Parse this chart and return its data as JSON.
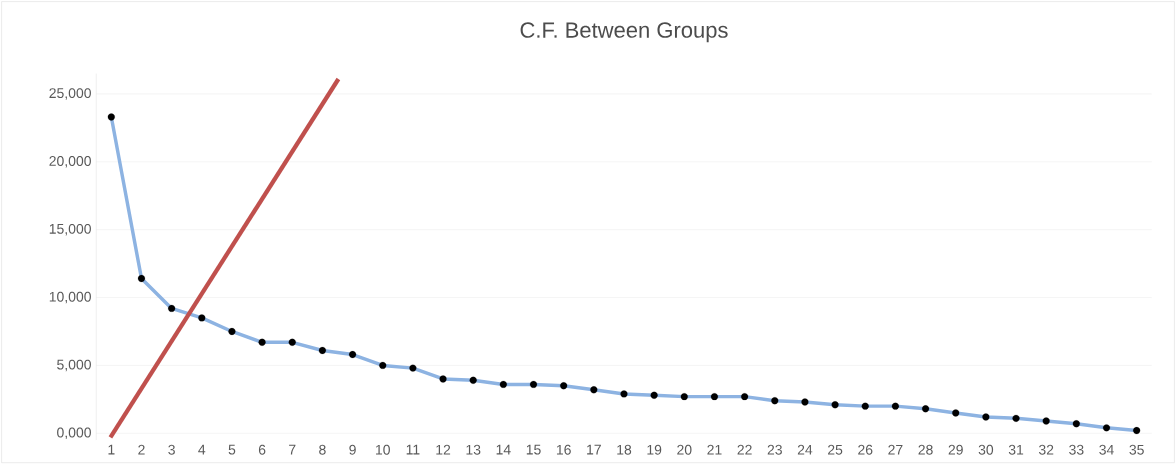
{
  "chart_data": {
    "type": "line",
    "title": "C.F. Between Groups",
    "x": [
      1,
      2,
      3,
      4,
      5,
      6,
      7,
      8,
      9,
      10,
      11,
      12,
      13,
      14,
      15,
      16,
      17,
      18,
      19,
      20,
      21,
      22,
      23,
      24,
      25,
      26,
      27,
      28,
      29,
      30,
      31,
      32,
      33,
      34,
      35
    ],
    "xlim": [
      0.5,
      35.5
    ],
    "xticks": [
      1,
      2,
      3,
      4,
      5,
      6,
      7,
      8,
      9,
      10,
      11,
      12,
      13,
      14,
      15,
      16,
      17,
      18,
      19,
      20,
      21,
      22,
      23,
      24,
      25,
      26,
      27,
      28,
      29,
      30,
      31,
      32,
      33,
      34,
      35
    ],
    "ylim": [
      -500,
      26500
    ],
    "yticks": [
      {
        "value": 0,
        "label": "0,000"
      },
      {
        "value": 5000,
        "label": "5,000"
      },
      {
        "value": 10000,
        "label": "10,000"
      },
      {
        "value": 15000,
        "label": "15,000"
      },
      {
        "value": 20000,
        "label": "20,000"
      },
      {
        "value": 25000,
        "label": "25,000"
      }
    ],
    "grid": "y",
    "marker": "circle",
    "legend": false,
    "series": [
      {
        "color": "#8db3e2",
        "values": [
          23300,
          11400,
          9200,
          8500,
          7500,
          6700,
          6700,
          6100,
          5800,
          5000,
          4800,
          4000,
          3900,
          3600,
          3600,
          3500,
          3200,
          2900,
          2800,
          2700,
          2700,
          2700,
          2400,
          2300,
          2100,
          2000,
          2000,
          1800,
          1500,
          1200,
          1100,
          900,
          700,
          400,
          200
        ]
      },
      {
        "type": "line",
        "marker": "none",
        "color": "#c0504d",
        "x": [
          0.97,
          8.53
        ],
        "values": [
          -300,
          26100
        ]
      }
    ]
  }
}
